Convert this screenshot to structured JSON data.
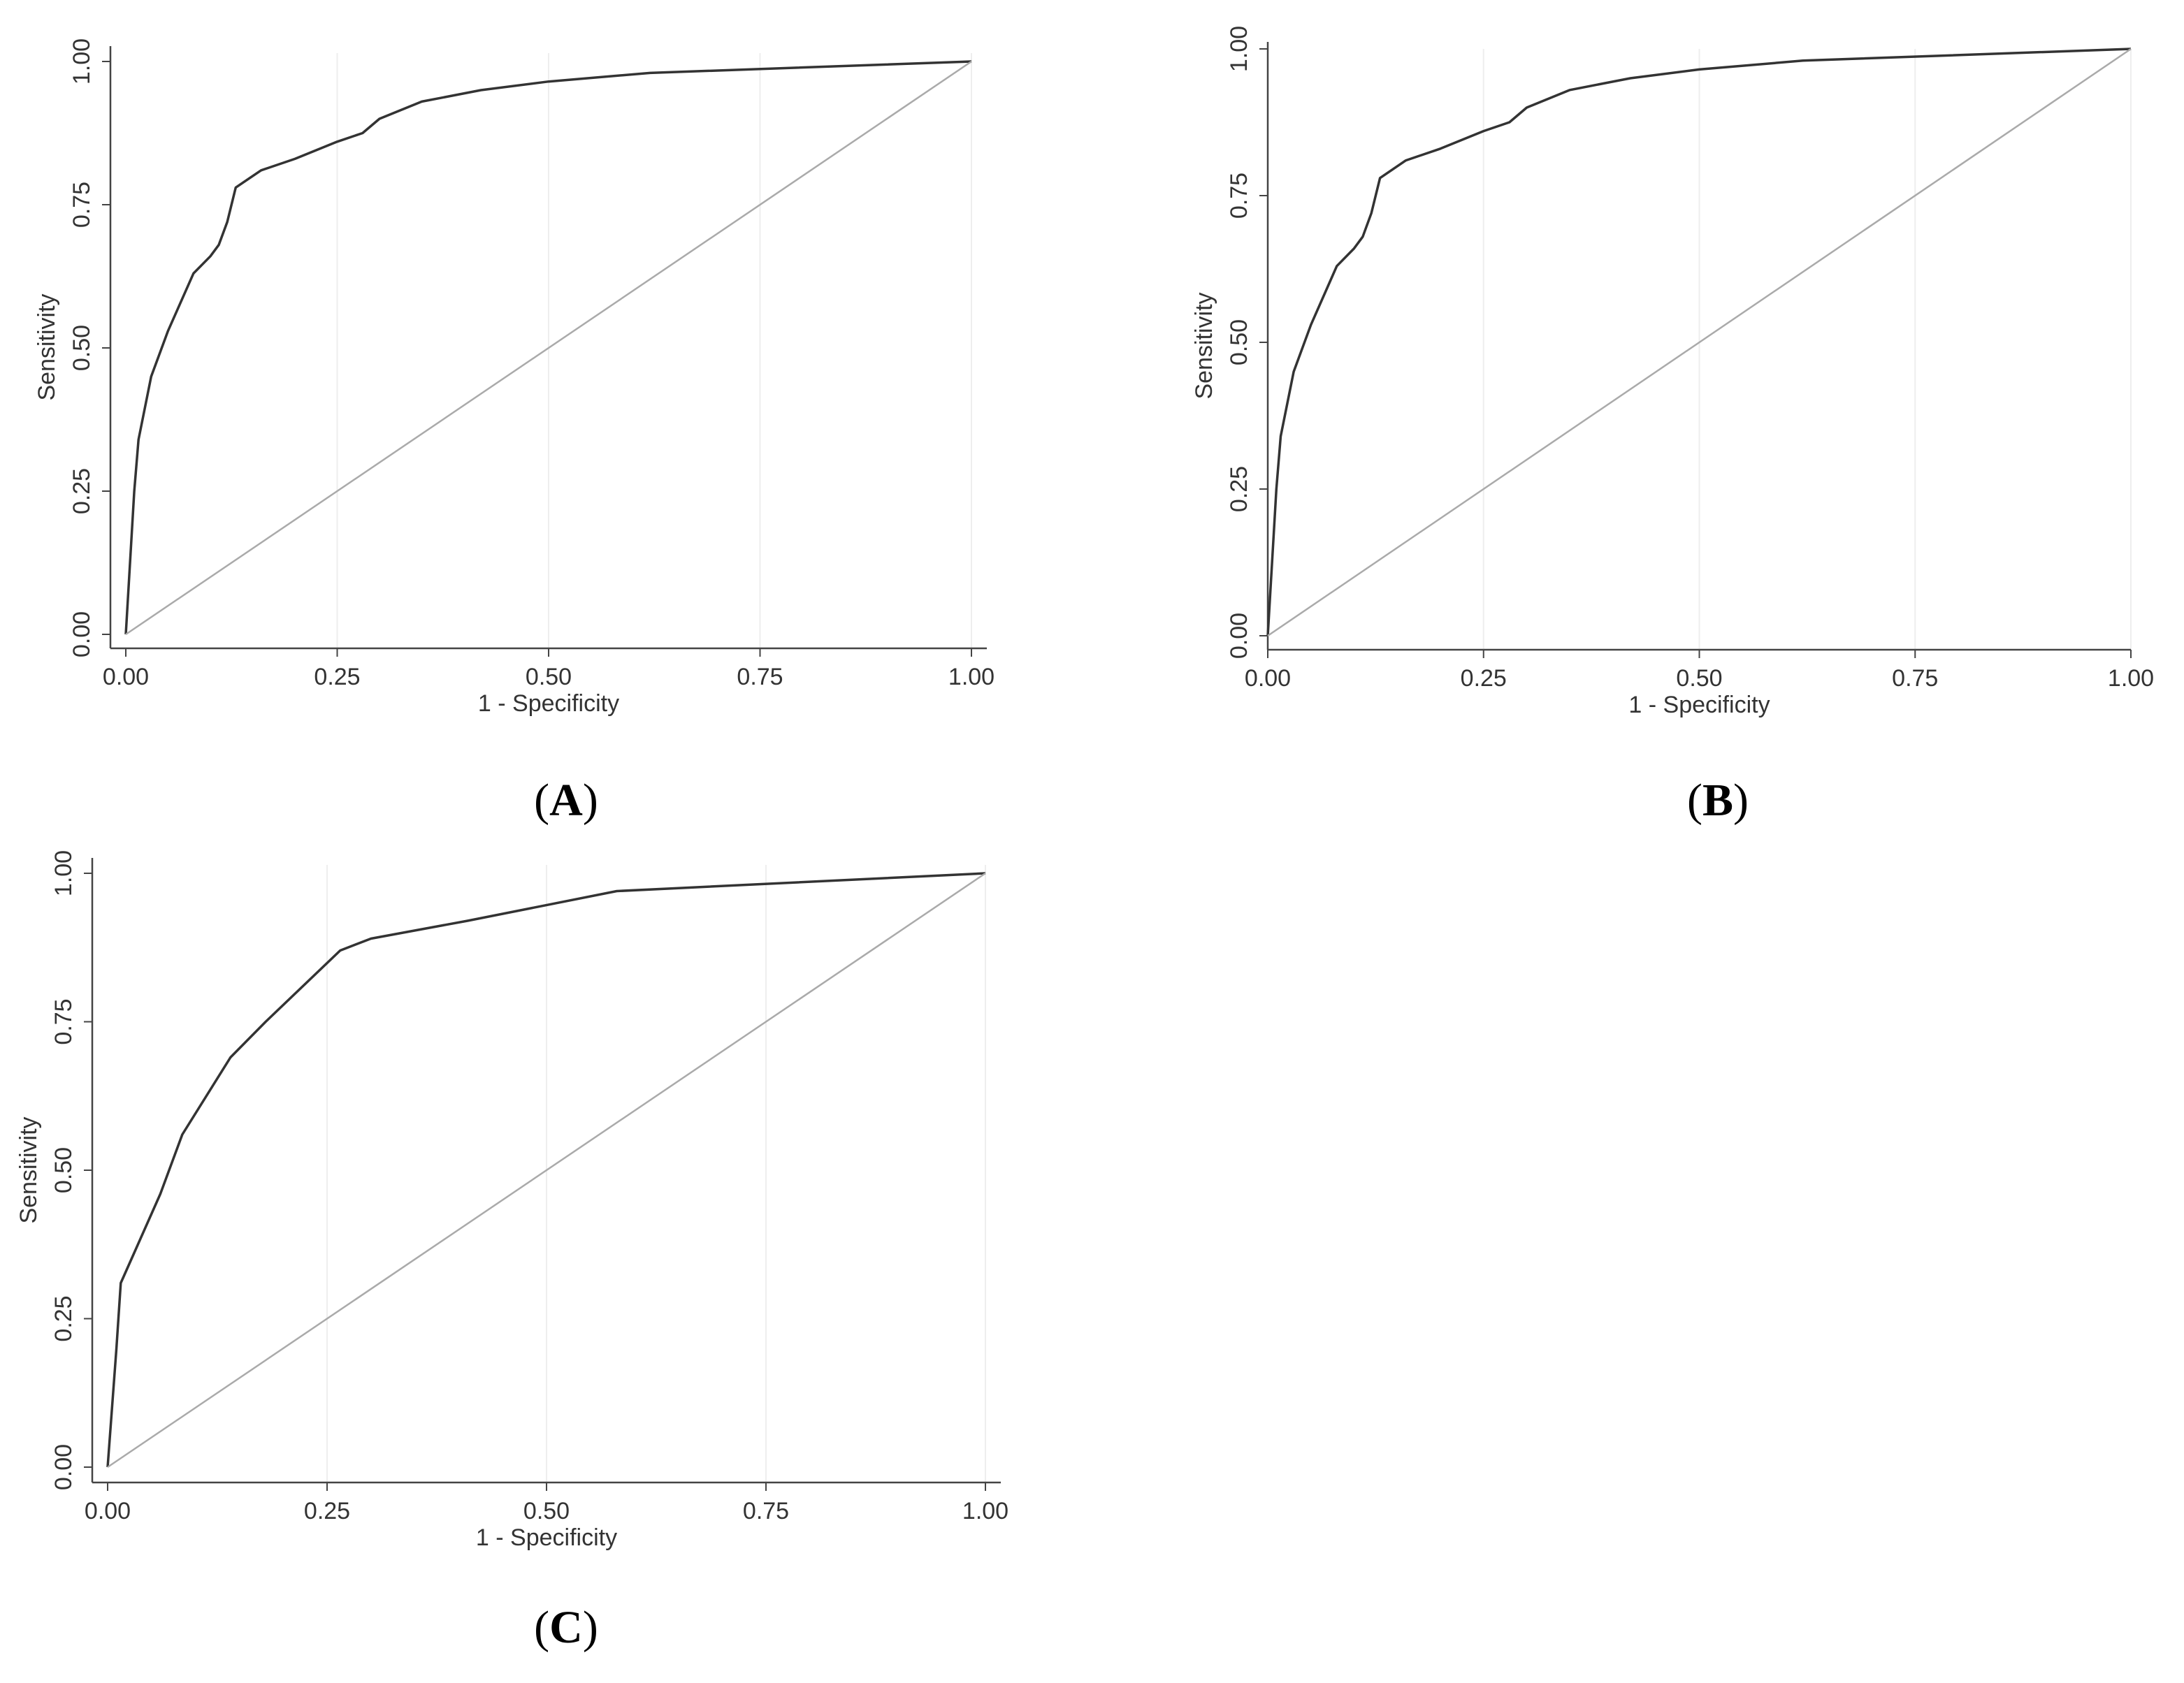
{
  "chart_data": [
    {
      "type": "line",
      "panel": "A",
      "caption": "A",
      "xlabel": "1 - Specificity",
      "ylabel": "Sensitivity",
      "xlim": [
        0,
        1
      ],
      "ylim": [
        0,
        1
      ],
      "xticks": [
        "0.00",
        "0.25",
        "0.50",
        "0.75",
        "1.00"
      ],
      "yticks": [
        "0.00",
        "0.25",
        "0.50",
        "0.75",
        "1.00"
      ],
      "grid": "vertical",
      "series": [
        {
          "role": "curve",
          "color": "#333333",
          "x": [
            0,
            0.01,
            0.015,
            0.03,
            0.05,
            0.08,
            0.1,
            0.11,
            0.12,
            0.13,
            0.16,
            0.2,
            0.25,
            0.28,
            0.3,
            0.35,
            0.42,
            0.5,
            0.62,
            1.0
          ],
          "y": [
            0,
            0.25,
            0.34,
            0.45,
            0.53,
            0.63,
            0.66,
            0.68,
            0.72,
            0.78,
            0.81,
            0.83,
            0.86,
            0.875,
            0.9,
            0.93,
            0.95,
            0.965,
            0.98,
            1.0
          ]
        },
        {
          "role": "reference",
          "color": "#aaaaaa",
          "x": [
            0,
            1
          ],
          "y": [
            0,
            1
          ]
        }
      ]
    },
    {
      "type": "line",
      "panel": "B",
      "caption": "B",
      "xlabel": "1 - Specificity",
      "ylabel": "Sensitivity",
      "xlim": [
        0,
        1
      ],
      "ylim": [
        0,
        1
      ],
      "xticks": [
        "0.00",
        "0.25",
        "0.50",
        "0.75",
        "1.00"
      ],
      "yticks": [
        "0.00",
        "0.25",
        "0.50",
        "0.75",
        "1.00"
      ],
      "grid": "vertical",
      "series": [
        {
          "role": "curve",
          "color": "#333333",
          "x": [
            0,
            0.01,
            0.015,
            0.03,
            0.05,
            0.08,
            0.1,
            0.11,
            0.12,
            0.13,
            0.16,
            0.2,
            0.25,
            0.28,
            0.3,
            0.35,
            0.42,
            0.5,
            0.62,
            1.0
          ],
          "y": [
            0,
            0.25,
            0.34,
            0.45,
            0.53,
            0.63,
            0.66,
            0.68,
            0.72,
            0.78,
            0.81,
            0.83,
            0.86,
            0.875,
            0.9,
            0.93,
            0.95,
            0.965,
            0.98,
            1.0
          ]
        },
        {
          "role": "reference",
          "color": "#aaaaaa",
          "x": [
            0,
            1
          ],
          "y": [
            0,
            1
          ]
        }
      ]
    },
    {
      "type": "line",
      "panel": "C",
      "caption": "C",
      "xlabel": "1 - Specificity",
      "ylabel": "Sensitivity",
      "xlim": [
        0,
        1
      ],
      "ylim": [
        0,
        1
      ],
      "xticks": [
        "0.00",
        "0.25",
        "0.50",
        "0.75",
        "1.00"
      ],
      "yticks": [
        "0.00",
        "0.25",
        "0.50",
        "0.75",
        "1.00"
      ],
      "grid": "vertical",
      "series": [
        {
          "role": "curve",
          "color": "#333333",
          "x": [
            0,
            0.01,
            0.015,
            0.03,
            0.06,
            0.085,
            0.14,
            0.18,
            0.265,
            0.3,
            0.41,
            0.58,
            1.0
          ],
          "y": [
            0,
            0.2,
            0.31,
            0.36,
            0.46,
            0.56,
            0.69,
            0.75,
            0.87,
            0.89,
            0.92,
            0.97,
            1.0
          ]
        },
        {
          "role": "reference",
          "color": "#aaaaaa",
          "x": [
            0,
            1
          ],
          "y": [
            0,
            1
          ]
        }
      ]
    }
  ]
}
